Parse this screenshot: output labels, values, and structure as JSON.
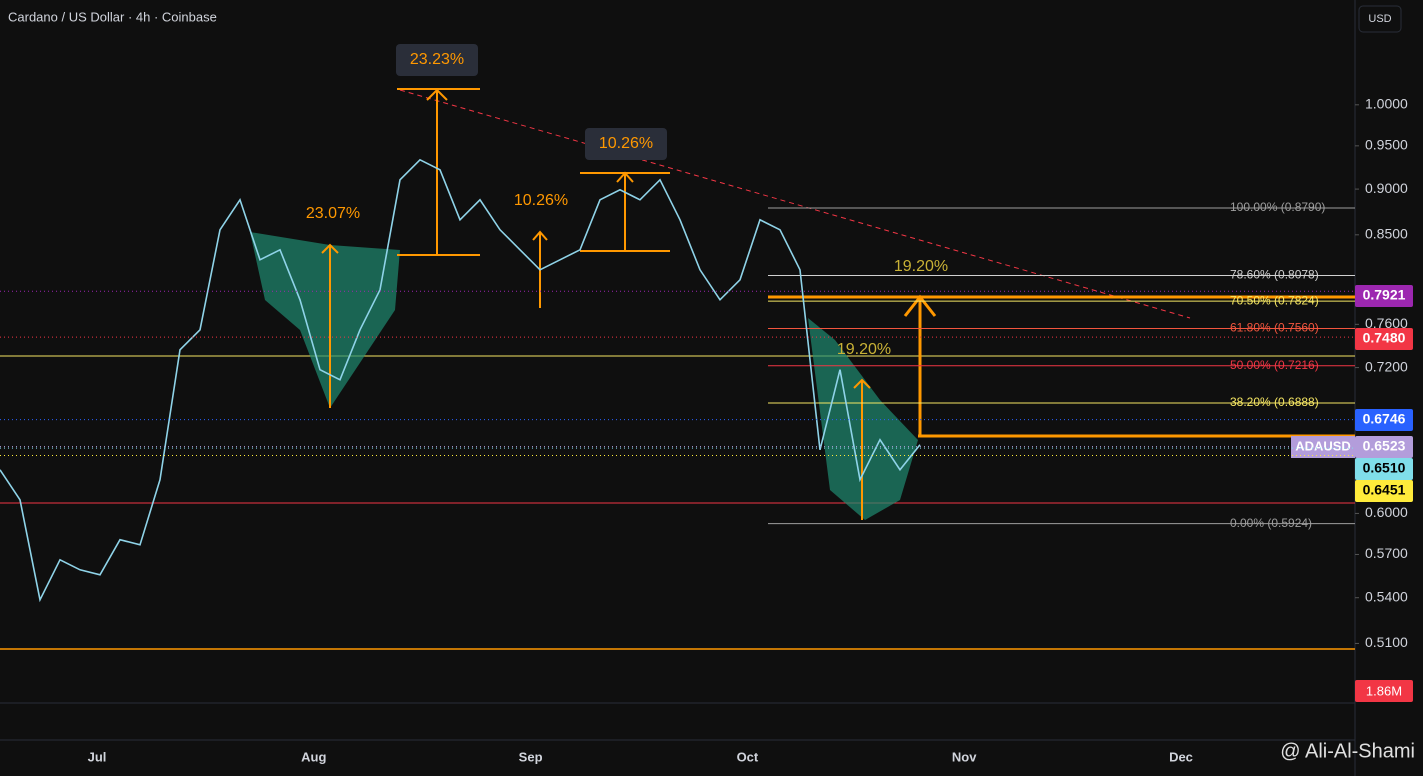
{
  "chart_data": {
    "type": "line",
    "title": "Cardano / US Dollar · 4h · Coinbase",
    "currency": "USD",
    "log_scale": true,
    "ylim": [
      0.452,
      1.14
    ],
    "yticks": [
      {
        "value": 1,
        "label": "1.0000"
      },
      {
        "value": 0.95,
        "label": "0.9500"
      },
      {
        "value": 0.9,
        "label": "0.9000"
      },
      {
        "value": 0.85,
        "label": "0.8500"
      },
      {
        "value": 0.76,
        "label": "0.7600"
      },
      {
        "value": 0.72,
        "label": "0.7200"
      },
      {
        "value": 0.6,
        "label": "0.6000"
      },
      {
        "value": 0.57,
        "label": "0.5700"
      },
      {
        "value": 0.54,
        "label": "0.5400"
      },
      {
        "value": 0.51,
        "label": "0.5100"
      }
    ],
    "x_labels": [
      "Jul",
      "Aug",
      "Sep",
      "Oct",
      "Nov",
      "Dec"
    ],
    "series": [
      {
        "name": "ADAUSD",
        "color": "#8fd3e8",
        "values": [
          0.6336,
          0.6103,
          0.5386,
          0.5662,
          0.5592,
          0.5557,
          0.5806,
          0.5769,
          0.6258,
          0.7362,
          0.7548,
          0.8553,
          0.888,
          0.8239,
          0.8342,
          0.7837,
          0.7181,
          0.7091,
          0.7548,
          0.7935,
          0.9105,
          0.9336,
          0.922,
          0.8661,
          0.888,
          0.8553,
          0.8342,
          0.8136,
          0.8239,
          0.8342,
          0.888,
          0.8992,
          0.888,
          0.9105,
          0.8661,
          0.8136,
          0.7837,
          0.8035,
          0.8661,
          0.8553,
          0.8136,
          0.6497,
          0.7181,
          0.6258,
          0.6579,
          0.6336,
          0.6538
        ]
      }
    ],
    "price_labels": [
      {
        "value": 0.7921,
        "label": "0.7921",
        "color": "#9c27b0"
      },
      {
        "value": 0.748,
        "label": "0.7480",
        "color": "#f23645"
      },
      {
        "value": 0.6746,
        "label": "0.6746",
        "color": "#2962ff"
      },
      {
        "value": 0.6523,
        "label": "0.6523",
        "name": "ADAUSD",
        "color": "#b39ddb"
      },
      {
        "value": 0.651,
        "label": "0.6510",
        "color": "#80deea"
      },
      {
        "value": 0.6451,
        "label": "0.6451",
        "color": "#ffeb3b"
      }
    ],
    "volume_label": "1.86M",
    "fib_levels": [
      {
        "value": 0.879,
        "label": "100.00% (0.8790)",
        "color": "#9e9e9e"
      },
      {
        "value": 0.8078,
        "label": "78.60% (0.8078)",
        "color": "#d0d0d0"
      },
      {
        "value": 0.7824,
        "label": "70.50% (0.7824)",
        "color": "#f5e663"
      },
      {
        "value": 0.756,
        "label": "61.80% (0.7560)",
        "color": "#f2553e"
      },
      {
        "value": 0.7216,
        "label": "50.00% (0.7216)",
        "color": "#f23645"
      },
      {
        "value": 0.6888,
        "label": "38.20% (0.6888)",
        "color": "#f5e663"
      },
      {
        "value": 0.5924,
        "label": "0.00% (0.5924)",
        "color": "#9e9e9e"
      }
    ],
    "annotations": [
      {
        "text": "23.23%",
        "color": "#ff9800"
      },
      {
        "text": "10.26%",
        "color": "#ff9800"
      },
      {
        "text": "23.07%",
        "color": "#ff9800"
      },
      {
        "text": "10.26%",
        "color": "#ff9800"
      },
      {
        "text": "19.20%",
        "color": "#c9b236"
      },
      {
        "text": "19.20%",
        "color": "#c9b236"
      }
    ],
    "watermark": "@ Ali-Al-Shami"
  }
}
